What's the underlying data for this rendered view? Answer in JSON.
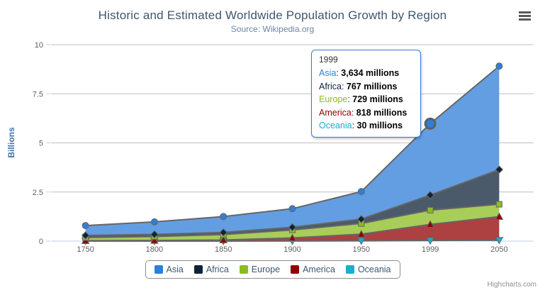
{
  "chart_data": {
    "type": "area",
    "stacking": "normal",
    "title": "Historic and Estimated Worldwide Population Growth by Region",
    "subtitle": "Source: Wikipedia.org",
    "categories": [
      "1750",
      "1800",
      "1850",
      "1900",
      "1950",
      "1999",
      "2050"
    ],
    "series": [
      {
        "name": "Asia",
        "color": "#2f7ed8",
        "marker": "circle",
        "values": [
          502,
          635,
          809,
          947,
          1402,
          3634,
          5268
        ]
      },
      {
        "name": "Africa",
        "color": "#0d233a",
        "marker": "diamond",
        "values": [
          106,
          107,
          111,
          133,
          221,
          767,
          1766
        ]
      },
      {
        "name": "Europe",
        "color": "#8bbc21",
        "marker": "square",
        "values": [
          163,
          203,
          276,
          408,
          547,
          729,
          628
        ]
      },
      {
        "name": "America",
        "color": "#910000",
        "marker": "triangle",
        "values": [
          18,
          31,
          54,
          156,
          339,
          818,
          1201
        ]
      },
      {
        "name": "Oceania",
        "color": "#1aadce",
        "marker": "triangle-down",
        "values": [
          2,
          2,
          2,
          6,
          13,
          30,
          46
        ]
      }
    ],
    "values_unit": "millions",
    "xlabel": "",
    "ylabel": "Billions",
    "yticks": [
      0,
      2.5,
      5,
      7.5,
      10
    ],
    "ytick_labels": [
      "0",
      "2.5",
      "5",
      "7.5",
      "10"
    ],
    "ylim": [
      0,
      10
    ],
    "grid": true,
    "legend_position": "bottom",
    "line_color": "#666666",
    "grid_color": "#C0C0C0",
    "axis_line_color": "#C0D0E0",
    "label_color": "#606060",
    "hover_point": {
      "series": "Asia",
      "category": "1999",
      "category_index": 5
    }
  },
  "tooltip": {
    "header": "1999",
    "rows": [
      {
        "label": "Asia",
        "value": "3,634 millions"
      },
      {
        "label": "Africa",
        "value": "767 millions"
      },
      {
        "label": "Europe",
        "value": "729 millions"
      },
      {
        "label": "America",
        "value": "818 millions"
      },
      {
        "label": "Oceania",
        "value": "30 millions"
      }
    ],
    "border_color": "#2f7ed8"
  },
  "credits": {
    "label": "Highcharts.com"
  }
}
